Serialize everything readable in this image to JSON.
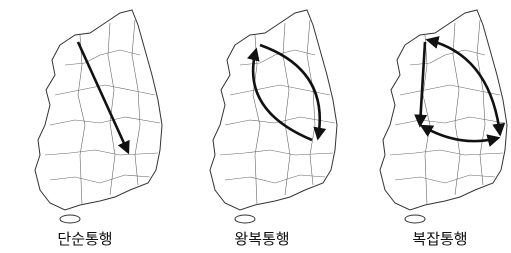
{
  "panels": [
    {
      "label": "단순통행"
    },
    {
      "label": "왕복통행"
    },
    {
      "label": "복잡통행"
    }
  ]
}
